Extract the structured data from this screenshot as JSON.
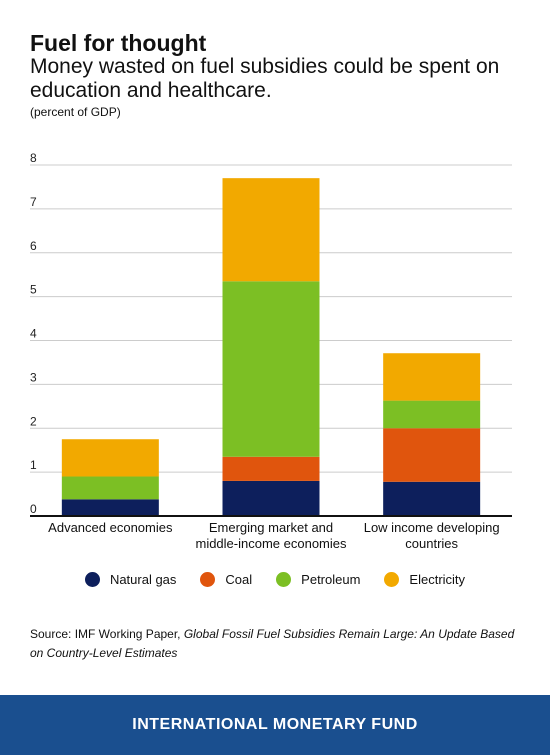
{
  "header": {
    "title": "Fuel for thought",
    "subtitle": "Money wasted on fuel subsidies could be spent on education and healthcare.",
    "unit": "(percent of GDP)"
  },
  "colors": {
    "Natural gas": "#0d1f5c",
    "Coal": "#e0550d",
    "Petroleum": "#7cbf24",
    "Electricity": "#f2a900"
  },
  "chart_data": {
    "type": "bar",
    "stacked": true,
    "categories": [
      [
        "Advanced economies"
      ],
      [
        "Emerging market and",
        "middle-income economies"
      ],
      [
        "Low income developing",
        "countries"
      ]
    ],
    "series": [
      {
        "name": "Natural gas",
        "values": [
          0.38,
          0.8,
          0.78
        ]
      },
      {
        "name": "Coal",
        "values": [
          0.0,
          0.55,
          1.22
        ]
      },
      {
        "name": "Petroleum",
        "values": [
          0.52,
          4.0,
          0.63
        ]
      },
      {
        "name": "Electricity",
        "values": [
          0.85,
          2.35,
          1.08
        ]
      }
    ],
    "ylim": [
      0,
      8
    ],
    "yticks": [
      "0",
      "1",
      "2",
      "3",
      "4",
      "5",
      "6",
      "7",
      "8"
    ],
    "grid": true,
    "legend_position": "bottom"
  },
  "source": {
    "prefix": "Source: IMF Working Paper, ",
    "title": "Global Fossil Fuel Subsidies Remain Large: An Update Based on Country-Level Estimates"
  },
  "footer": {
    "label": "INTERNATIONAL MONETARY FUND"
  }
}
